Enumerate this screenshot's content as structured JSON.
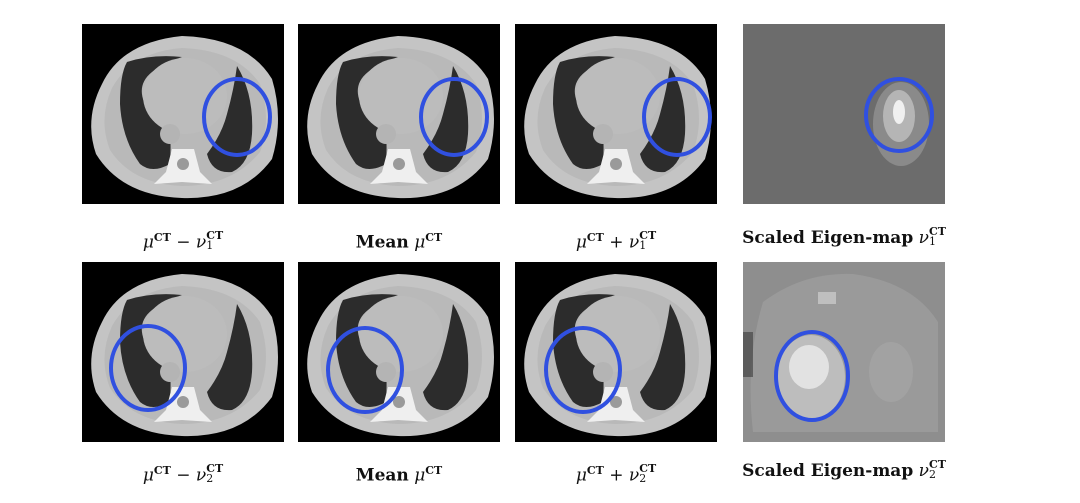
{
  "figure": {
    "rows": [
      {
        "panels": [
          {
            "type": "ct",
            "caption": {
              "prefix": "",
              "mu": "μ",
              "mu_sup": "CT",
              "op": "−",
              "nu": "ν",
              "nu_sup": "CT",
              "nu_sub": "1"
            }
          },
          {
            "type": "ct",
            "caption": {
              "prefix": "Mean",
              "mu": "μ",
              "mu_sup": "CT",
              "op": "",
              "nu": "",
              "nu_sup": "",
              "nu_sub": ""
            }
          },
          {
            "type": "ct",
            "caption": {
              "prefix": "",
              "mu": "μ",
              "mu_sup": "CT",
              "op": "+",
              "nu": "ν",
              "nu_sup": "CT",
              "nu_sub": "1"
            }
          },
          {
            "type": "eigenmap",
            "caption": {
              "prefix": "Scaled Eigen-map",
              "mu": "",
              "mu_sup": "",
              "op": "",
              "nu": "ν",
              "nu_sup": "CT",
              "nu_sub": "1"
            }
          }
        ]
      },
      {
        "panels": [
          {
            "type": "ct",
            "caption": {
              "prefix": "",
              "mu": "μ",
              "mu_sup": "CT",
              "op": "−",
              "nu": "ν",
              "nu_sup": "CT",
              "nu_sub": "2"
            }
          },
          {
            "type": "ct",
            "caption": {
              "prefix": "Mean",
              "mu": "μ",
              "mu_sup": "CT",
              "op": "",
              "nu": "",
              "nu_sup": "",
              "nu_sub": ""
            }
          },
          {
            "type": "ct",
            "caption": {
              "prefix": "",
              "mu": "μ",
              "mu_sup": "CT",
              "op": "+",
              "nu": "ν",
              "nu_sup": "CT",
              "nu_sub": "2"
            }
          },
          {
            "type": "eigenmap",
            "caption": {
              "prefix": "Scaled Eigen-map",
              "mu": "",
              "mu_sup": "",
              "op": "",
              "nu": "ν",
              "nu_sup": "CT",
              "nu_sub": "2"
            }
          }
        ]
      }
    ],
    "highlight_color": "#3050e0"
  }
}
